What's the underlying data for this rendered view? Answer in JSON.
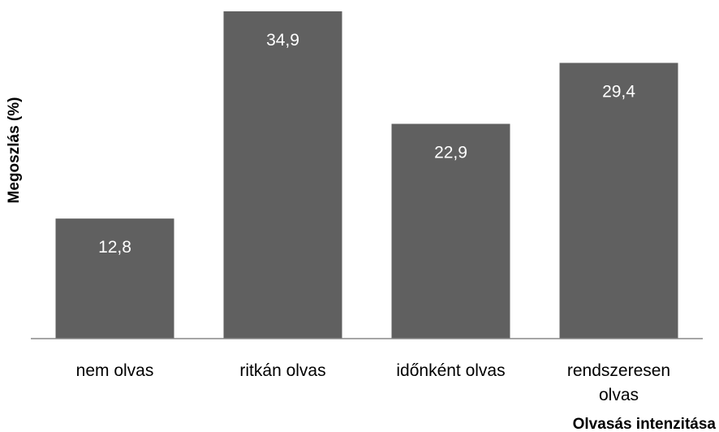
{
  "chart_data": {
    "type": "bar",
    "categories": [
      "nem olvas",
      "ritkán olvas",
      "időnként olvas",
      "rendszeresen olvas"
    ],
    "category_lines": [
      [
        "nem olvas"
      ],
      [
        "ritkán olvas"
      ],
      [
        "időnként olvas"
      ],
      [
        "rendszeresen",
        "olvas"
      ]
    ],
    "values": [
      12.8,
      34.9,
      22.9,
      29.4
    ],
    "value_labels": [
      "12,8",
      "34,9",
      "22,9",
      "29,4"
    ],
    "xlabel": "Olvasás intenzitása",
    "ylabel": "Megoszlás (%)",
    "ylim": [
      0,
      35.5
    ],
    "grid": false,
    "legend": "none",
    "bar_color": "#606060",
    "axis_color": "#888888"
  }
}
